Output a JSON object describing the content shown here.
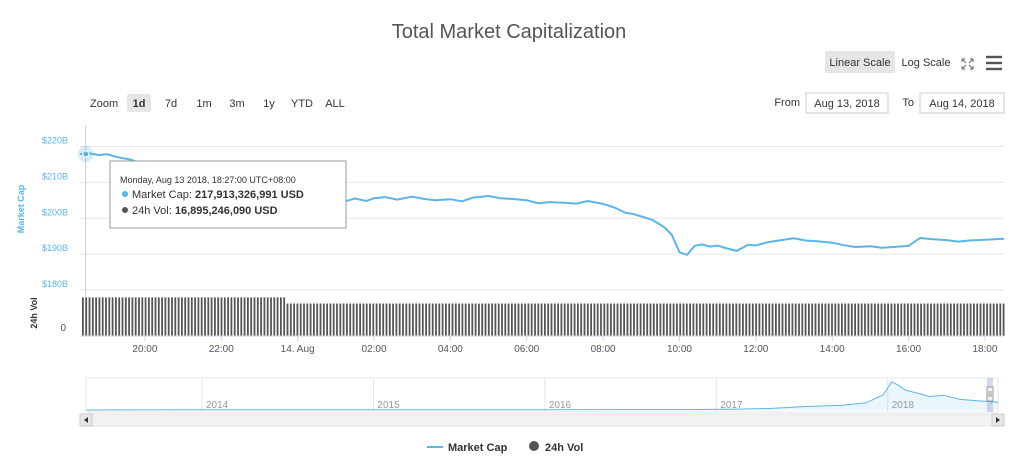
{
  "title": "Total Market Capitalization",
  "scale_buttons": [
    "Linear Scale",
    "Log Scale"
  ],
  "zoom": {
    "label": "Zoom",
    "options": [
      "1d",
      "7d",
      "1m",
      "3m",
      "1y",
      "YTD",
      "ALL"
    ],
    "selected": "1d"
  },
  "range": {
    "from_label": "From",
    "from_value": "Aug 13, 2018",
    "to_label": "To",
    "to_value": "Aug 14, 2018"
  },
  "tooltip": {
    "date": "Monday, Aug 13 2018, 18:27:00 UTC+08:00",
    "market_cap_label": "Market Cap:",
    "market_cap_value": "217,913,326,991 USD",
    "vol_label": "24h Vol:",
    "vol_value": "16,895,246,090 USD"
  },
  "legend": [
    "Market Cap",
    "24h Vol"
  ],
  "colors": {
    "market_cap": "#5bb5e6",
    "volume": "#555555",
    "navigator": "#5bb5e6"
  },
  "chart_data": {
    "type": "line",
    "title": "Total Market Capitalization",
    "ylabel": "Market Cap",
    "ylabel2": "24h Vol",
    "y_ticks": [
      "$220B",
      "$210B",
      "$200B",
      "$190B",
      "$180B"
    ],
    "y_tick_values": [
      220,
      210,
      200,
      190,
      180
    ],
    "ylim": [
      180,
      226
    ],
    "vol_ticks": [
      "0"
    ],
    "x_ticks": [
      "20:00",
      "22:00",
      "14. Aug",
      "02:00",
      "04:00",
      "06:00",
      "08:00",
      "10:00",
      "12:00",
      "14:00",
      "16:00",
      "18:00"
    ],
    "x_tick_hours": [
      20,
      22,
      24,
      26,
      28,
      30,
      32,
      34,
      36,
      38,
      40,
      42
    ],
    "xlim_hours": [
      18.3,
      42.5
    ],
    "series": [
      {
        "name": "Market Cap",
        "x_hours": [
          18.3,
          18.5,
          18.8,
          19.0,
          19.3,
          19.6,
          20.0,
          20.5,
          21.0,
          21.5,
          22.0,
          22.5,
          23.0,
          23.5,
          24.0,
          24.3,
          24.6,
          25.0,
          25.2,
          25.5,
          25.8,
          26.0,
          26.3,
          26.6,
          27.0,
          27.3,
          27.6,
          28.0,
          28.3,
          28.6,
          29.0,
          29.3,
          29.6,
          30.0,
          30.3,
          30.6,
          31.0,
          31.3,
          31.6,
          32.0,
          32.3,
          32.6,
          32.8,
          33.0,
          33.3,
          33.6,
          33.8,
          34.0,
          34.2,
          34.4,
          34.6,
          34.8,
          35.0,
          35.2,
          35.5,
          35.8,
          36.0,
          36.3,
          36.6,
          37.0,
          37.3,
          37.6,
          38.0,
          38.3,
          38.6,
          39.0,
          39.3,
          39.6,
          40.0,
          40.3,
          40.6,
          41.0,
          41.3,
          41.6,
          42.0,
          42.5
        ],
        "values": [
          217.9,
          218.2,
          217.6,
          217.9,
          217.0,
          216.4,
          215.0,
          213.7,
          214.2,
          213.1,
          212.5,
          212.0,
          211.5,
          211.0,
          210.0,
          208.5,
          206.3,
          204.9,
          204.6,
          205.5,
          204.8,
          205.6,
          205.9,
          205.2,
          206.0,
          205.4,
          205.0,
          205.3,
          204.7,
          205.8,
          206.2,
          205.6,
          205.4,
          205.0,
          204.2,
          204.5,
          204.3,
          204.1,
          204.8,
          204.0,
          203.0,
          201.5,
          201.2,
          200.5,
          199.5,
          197.5,
          195.4,
          190.5,
          189.8,
          192.3,
          192.7,
          192.1,
          192.4,
          191.7,
          190.9,
          192.6,
          192.4,
          193.3,
          193.8,
          194.4,
          193.8,
          193.6,
          193.2,
          192.5,
          192.0,
          192.2,
          191.8,
          192.0,
          192.3,
          194.5,
          194.2,
          193.9,
          193.5,
          193.8,
          194.0,
          194.3
        ]
      },
      {
        "name": "24h Vol",
        "type": "column",
        "segments": [
          {
            "from_hours": 18.3,
            "to_hours": 23.7,
            "value": 16.9
          },
          {
            "from_hours": 23.7,
            "to_hours": 42.5,
            "value": 14.2
          }
        ]
      }
    ],
    "navigator": {
      "x_ticks": [
        "2014",
        "2015",
        "2016",
        "2017",
        "2018"
      ],
      "x_tick_years": [
        2014,
        2015,
        2016,
        2017,
        2018
      ],
      "xlim_years": [
        2013.3,
        2018.62
      ],
      "x_years": [
        2013.3,
        2014.0,
        2015.0,
        2016.0,
        2016.8,
        2017.1,
        2017.3,
        2017.5,
        2017.7,
        2017.85,
        2017.95,
        2018.0,
        2018.04,
        2018.08,
        2018.15,
        2018.22,
        2018.3,
        2018.4,
        2018.5,
        2018.62
      ],
      "values": [
        1,
        8,
        5,
        7,
        12,
        25,
        45,
        100,
        130,
        200,
        430,
        800,
        700,
        560,
        480,
        380,
        420,
        300,
        260,
        217
      ]
    }
  }
}
